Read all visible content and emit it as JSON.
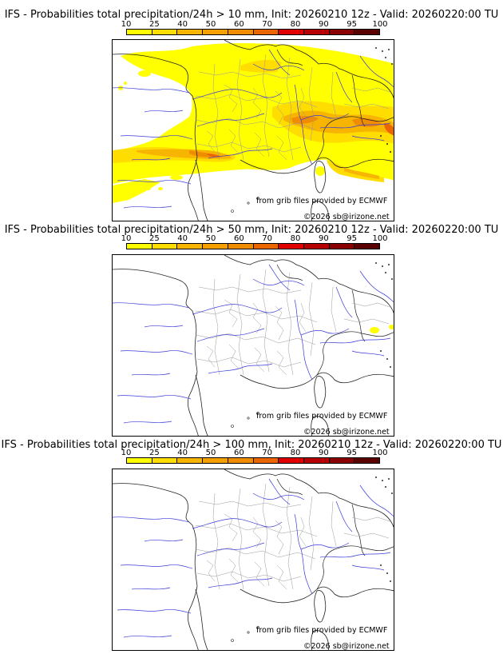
{
  "colorbar": {
    "labels": [
      "10",
      "25",
      "40",
      "50",
      "60",
      "70",
      "80",
      "90",
      "95",
      "100"
    ],
    "colors": [
      "#ffff00",
      "#ffdd00",
      "#f7b400",
      "#f5a000",
      "#f08c00",
      "#ec6600",
      "#e00000",
      "#b40000",
      "#8a0000",
      "#5a0000"
    ]
  },
  "panels": [
    {
      "title": "IFS - Probabilities total precipitation/24h > 10 mm, Init: 20260210 12z - Valid: 20260220:00 TU",
      "credit_source": "from grib files provided by ECMWF",
      "credit_copyright": "©2026 sb@irizone.net"
    },
    {
      "title": "IFS - Probabilities total precipitation/24h > 50 mm, Init: 20260210 12z - Valid: 20260220:00 TU",
      "credit_source": "from grib files provided by ECMWF",
      "credit_copyright": "©2026 sb@irizone.net"
    },
    {
      "title": "IFS - Probabilities total precipitation/24h > 100 mm, Init: 20260210 12z - Valid: 20260220:00 TU",
      "credit_source": "from grib files provided by ECMWF",
      "credit_copyright": "©2026 sb@irizone.net"
    }
  ]
}
